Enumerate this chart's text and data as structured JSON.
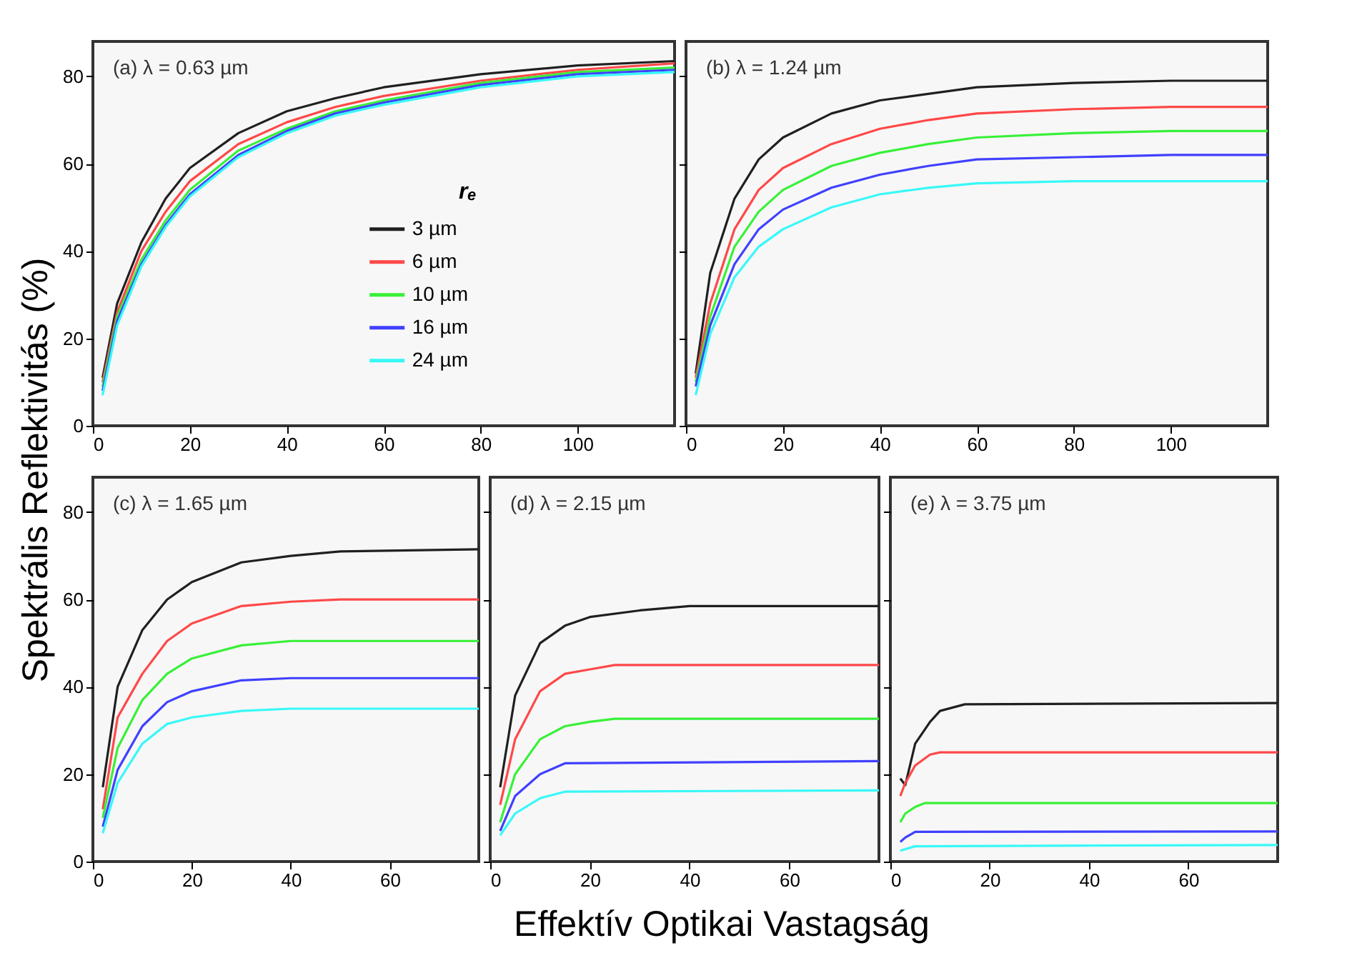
{
  "chart_data": [
    {
      "type": "line",
      "annotations": [
        "(a) λ = 0.63 µm"
      ],
      "ylabel": "Spektrális Reflektivitás (%)",
      "xlim": [
        0,
        120
      ],
      "xticks": [
        0,
        20,
        40,
        60,
        80,
        100
      ],
      "ylim": [
        0,
        88
      ],
      "yticks": [
        0,
        20,
        40,
        60,
        80
      ],
      "grid": false,
      "legend": "right",
      "legend_title": "rₑ",
      "series": [
        {
          "name": "3 µm",
          "color": "#202020",
          "x": [
            2,
            5,
            10,
            15,
            20,
            30,
            40,
            50,
            60,
            80,
            100,
            120
          ],
          "values": [
            11,
            28,
            42,
            52,
            59,
            67,
            72,
            75,
            77.5,
            80.5,
            82.5,
            83.5
          ]
        },
        {
          "name": "6 µm",
          "color": "#ff4848",
          "x": [
            2,
            5,
            10,
            15,
            20,
            30,
            40,
            50,
            60,
            80,
            100,
            120
          ],
          "values": [
            10,
            26,
            40,
            49,
            56,
            64.5,
            69.5,
            73,
            75.5,
            79,
            81.5,
            83
          ]
        },
        {
          "name": "10 µm",
          "color": "#38f038",
          "x": [
            2,
            5,
            10,
            15,
            20,
            30,
            40,
            50,
            60,
            80,
            100,
            120
          ],
          "values": [
            9,
            25,
            38,
            47,
            54,
            63,
            68,
            72,
            74.5,
            78.5,
            81,
            82
          ]
        },
        {
          "name": "16 µm",
          "color": "#4040ff",
          "x": [
            2,
            5,
            10,
            15,
            20,
            30,
            40,
            50,
            60,
            80,
            100,
            120
          ],
          "values": [
            8,
            24,
            37,
            46,
            53,
            62,
            67.5,
            71.5,
            74,
            78,
            80.5,
            81.5
          ]
        },
        {
          "name": "24 µm",
          "color": "#38f8f8",
          "x": [
            2,
            5,
            10,
            15,
            20,
            30,
            40,
            50,
            60,
            80,
            100,
            120
          ],
          "values": [
            7,
            23,
            36.5,
            45.5,
            52.5,
            61.5,
            67,
            71,
            73.5,
            77.5,
            80,
            81
          ]
        }
      ]
    },
    {
      "type": "line",
      "annotations": [
        "(b) λ = 1.24 µm"
      ],
      "xlim": [
        0,
        120
      ],
      "xticks": [
        0,
        20,
        40,
        60,
        80,
        100
      ],
      "ylim": [
        0,
        88
      ],
      "yticks": [
        0,
        20,
        40,
        60,
        80
      ],
      "tick_labels": "x",
      "grid": false,
      "series": [
        {
          "color": "#202020",
          "x": [
            2,
            5,
            10,
            15,
            20,
            30,
            40,
            50,
            60,
            80,
            100,
            120
          ],
          "values": [
            12,
            35,
            52,
            61,
            66,
            71.5,
            74.5,
            76,
            77.5,
            78.5,
            79,
            79
          ]
        },
        {
          "color": "#ff4848",
          "x": [
            2,
            5,
            10,
            15,
            20,
            30,
            40,
            50,
            60,
            80,
            100,
            120
          ],
          "values": [
            11,
            28,
            45,
            54,
            59,
            64.5,
            68,
            70,
            71.5,
            72.5,
            73,
            73
          ]
        },
        {
          "color": "#38f038",
          "x": [
            2,
            5,
            10,
            15,
            20,
            30,
            40,
            50,
            60,
            80,
            100,
            120
          ],
          "values": [
            10,
            25,
            41,
            49,
            54,
            59.5,
            62.5,
            64.5,
            66,
            67,
            67.5,
            67.5
          ]
        },
        {
          "color": "#4040ff",
          "x": [
            2,
            5,
            10,
            15,
            20,
            30,
            40,
            50,
            60,
            80,
            100,
            120
          ],
          "values": [
            9,
            23,
            37,
            45,
            49.5,
            54.5,
            57.5,
            59.5,
            61,
            61.5,
            62,
            62
          ]
        },
        {
          "color": "#38f8f8",
          "x": [
            2,
            5,
            10,
            15,
            20,
            30,
            40,
            50,
            60,
            80,
            100,
            120
          ],
          "values": [
            7,
            21,
            34,
            41,
            45,
            50,
            53,
            54.5,
            55.5,
            56,
            56,
            56
          ]
        }
      ]
    },
    {
      "type": "line",
      "annotations": [
        "(c) λ = 1.65 µm"
      ],
      "xlim": [
        0,
        78
      ],
      "xticks": [
        0,
        20,
        40,
        60
      ],
      "ylim": [
        0,
        88
      ],
      "yticks": [
        0,
        20,
        40,
        60,
        80
      ],
      "grid": false,
      "series": [
        {
          "color": "#202020",
          "x": [
            2,
            5,
            10,
            15,
            20,
            30,
            40,
            50,
            78
          ],
          "values": [
            17,
            40,
            53,
            60,
            64,
            68.5,
            70,
            71,
            71.5
          ]
        },
        {
          "color": "#ff4848",
          "x": [
            2,
            5,
            10,
            15,
            20,
            30,
            40,
            50,
            78
          ],
          "values": [
            12,
            33,
            43,
            50.5,
            54.5,
            58.5,
            59.5,
            60,
            60
          ]
        },
        {
          "color": "#38f038",
          "x": [
            2,
            5,
            10,
            15,
            20,
            30,
            40,
            78
          ],
          "values": [
            10,
            26,
            37,
            43,
            46.5,
            49.5,
            50.5,
            50.5
          ]
        },
        {
          "color": "#4040ff",
          "x": [
            2,
            5,
            10,
            15,
            20,
            30,
            40,
            78
          ],
          "values": [
            8,
            21,
            31,
            36.5,
            39,
            41.5,
            42,
            42
          ]
        },
        {
          "color": "#38f8f8",
          "x": [
            2,
            5,
            10,
            15,
            20,
            30,
            40,
            78
          ],
          "values": [
            6.5,
            18,
            27,
            31.5,
            33,
            34.5,
            35,
            35
          ]
        }
      ]
    },
    {
      "type": "line",
      "annotations": [
        "(d) λ = 2.15 µm"
      ],
      "xlabel": "Effektív Optikai Vastagság",
      "xlim": [
        0,
        78
      ],
      "xticks": [
        0,
        20,
        40,
        60
      ],
      "ylim": [
        0,
        88
      ],
      "yticks": [
        0,
        20,
        40,
        60,
        80
      ],
      "tick_labels": "x",
      "grid": false,
      "series": [
        {
          "color": "#202020",
          "x": [
            2,
            5,
            10,
            15,
            20,
            30,
            40,
            78
          ],
          "values": [
            17,
            38,
            50,
            54,
            56,
            57.5,
            58.5,
            58.5
          ]
        },
        {
          "color": "#ff4848",
          "x": [
            2,
            5,
            10,
            15,
            20,
            25,
            78
          ],
          "values": [
            13,
            28,
            39,
            43,
            44,
            45,
            45
          ]
        },
        {
          "color": "#38f038",
          "x": [
            2,
            5,
            10,
            15,
            20,
            25,
            78
          ],
          "values": [
            9,
            20,
            28,
            31,
            32,
            32.7,
            32.7
          ]
        },
        {
          "color": "#4040ff",
          "x": [
            2,
            5,
            10,
            15,
            78
          ],
          "values": [
            7,
            15,
            20,
            22.5,
            23
          ]
        },
        {
          "color": "#38f8f8",
          "x": [
            2,
            5,
            10,
            15,
            78
          ],
          "values": [
            6,
            11,
            14.5,
            16,
            16.3
          ]
        }
      ]
    },
    {
      "type": "line",
      "annotations": [
        "(e) λ = 3.75 µm"
      ],
      "xlim": [
        0,
        78
      ],
      "xticks": [
        0,
        20,
        40,
        60
      ],
      "ylim": [
        0,
        88
      ],
      "yticks": [
        0,
        20,
        40,
        60,
        80
      ],
      "tick_labels": "x",
      "grid": false,
      "series": [
        {
          "color": "#202020",
          "x": [
            2,
            3,
            5,
            8,
            10,
            15,
            78
          ],
          "values": [
            19,
            17.5,
            27,
            32,
            34.5,
            36,
            36.3
          ]
        },
        {
          "color": "#ff4848",
          "x": [
            2,
            3,
            5,
            8,
            10,
            78
          ],
          "values": [
            15,
            18,
            22,
            24.5,
            25,
            25
          ]
        },
        {
          "color": "#38f038",
          "x": [
            2,
            3,
            5,
            7,
            78
          ],
          "values": [
            9,
            11,
            12.5,
            13.4,
            13.4
          ]
        },
        {
          "color": "#4040ff",
          "x": [
            2,
            3,
            5,
            78
          ],
          "values": [
            4.5,
            5.5,
            6.8,
            6.9
          ]
        },
        {
          "color": "#38f8f8",
          "x": [
            2,
            5,
            78
          ],
          "values": [
            2.5,
            3.5,
            3.8
          ]
        }
      ]
    }
  ]
}
